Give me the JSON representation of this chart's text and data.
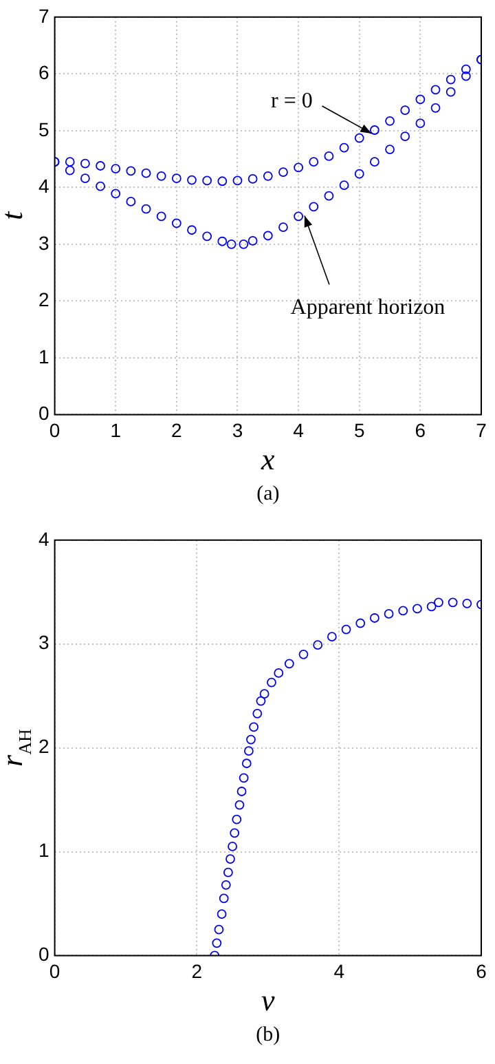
{
  "chart_data": [
    {
      "type": "scatter",
      "xlabel": "x",
      "ylabel": "t",
      "xlim": [
        0,
        7
      ],
      "ylim": [
        0,
        7
      ],
      "xticks": [
        0,
        1,
        2,
        3,
        4,
        5,
        6,
        7
      ],
      "yticks": [
        0,
        1,
        2,
        3,
        4,
        5,
        6,
        7
      ],
      "grid": true,
      "legend": false,
      "marker": "circle",
      "series": [
        {
          "color": "#0000ff",
          "x": [
            0,
            0.25,
            0.5,
            0.75,
            1,
            1.25,
            1.5,
            1.75,
            2,
            2.25,
            2.5,
            2.75,
            3,
            3.25,
            3.5,
            3.75,
            4,
            4.25,
            4.5,
            4.75,
            5,
            5.25,
            5.5,
            5.75,
            6,
            6.25,
            6.5,
            6.75,
            7
          ],
          "values": [
            4.45,
            4.45,
            4.42,
            4.38,
            4.33,
            4.29,
            4.25,
            4.2,
            4.16,
            4.13,
            4.12,
            4.11,
            4.12,
            4.15,
            4.2,
            4.27,
            4.35,
            4.45,
            4.55,
            4.7,
            4.87,
            5.01,
            5.17,
            5.36,
            5.55,
            5.72,
            5.9,
            6.08,
            6.25
          ]
        },
        {
          "color": "#0000ff",
          "x": [
            0,
            0.25,
            0.5,
            0.75,
            1,
            1.25,
            1.5,
            1.75,
            2,
            2.25,
            2.5,
            2.75,
            2.9,
            3.1,
            3.25,
            3.5,
            3.75,
            4,
            4.25,
            4.5,
            4.75,
            5,
            5.25,
            5.5,
            5.75,
            6,
            6.25,
            6.5,
            6.75,
            7
          ],
          "values": [
            4.45,
            4.3,
            4.16,
            4.02,
            3.89,
            3.75,
            3.62,
            3.49,
            3.37,
            3.25,
            3.14,
            3.05,
            3.0,
            3.0,
            3.06,
            3.15,
            3.3,
            3.49,
            3.66,
            3.85,
            4.04,
            4.24,
            4.45,
            4.67,
            4.9,
            5.13,
            5.4,
            5.68,
            5.96,
            6.25
          ]
        }
      ],
      "annotations": [
        {
          "text": "r = 0",
          "x": 5.2,
          "y": 4.95
        },
        {
          "text": "Apparent horizon",
          "x": 4.1,
          "y": 3.5
        },
        "(a)"
      ]
    },
    {
      "type": "scatter",
      "xlabel": "v",
      "ylabel": "r$_{AH}$",
      "xlim": [
        0,
        6
      ],
      "ylim": [
        0,
        4
      ],
      "xticks": [
        0,
        2,
        4,
        6
      ],
      "yticks": [
        0,
        1,
        2,
        3,
        4
      ],
      "grid": true,
      "legend": false,
      "marker": "circle",
      "series": [
        {
          "color": "#0000ff",
          "x": [
            2.25,
            2.28,
            2.31,
            2.35,
            2.38,
            2.41,
            2.44,
            2.47,
            2.5,
            2.53,
            2.56,
            2.6,
            2.63,
            2.66,
            2.7,
            2.73,
            2.76,
            2.8,
            2.85,
            2.9,
            2.95,
            3.05,
            3.15,
            3.3,
            3.5,
            3.7,
            3.9,
            4.1,
            4.3,
            4.5,
            4.7,
            4.9,
            5.1,
            5.3,
            5.4,
            5.6,
            5.8,
            6
          ],
          "values": [
            0,
            0.12,
            0.25,
            0.4,
            0.55,
            0.68,
            0.8,
            0.93,
            1.05,
            1.18,
            1.31,
            1.45,
            1.58,
            1.71,
            1.85,
            1.97,
            2.08,
            2.2,
            2.33,
            2.45,
            2.52,
            2.63,
            2.72,
            2.81,
            2.9,
            2.99,
            3.07,
            3.14,
            3.2,
            3.25,
            3.29,
            3.32,
            3.34,
            3.36,
            3.4,
            3.4,
            3.39,
            3.38
          ]
        }
      ],
      "annotations": [
        "(b)"
      ]
    }
  ]
}
